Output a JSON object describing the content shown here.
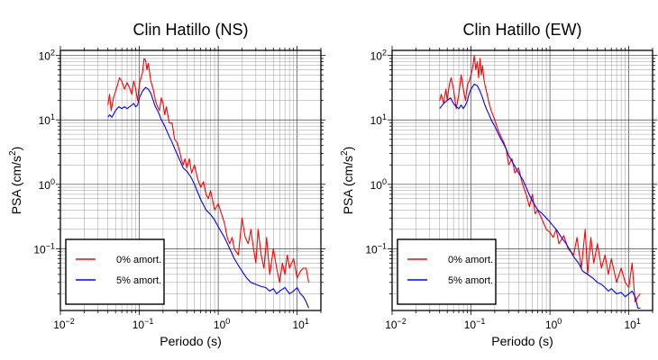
{
  "chart_data": [
    {
      "type": "line",
      "title": "Clin Hatillo (NS)",
      "xlabel": "Periodo (s)",
      "ylabel": "PSA (cm/s",
      "ylabel_sup": "2",
      "ylabel_close": ")",
      "x_scale": "log",
      "y_scale": "log",
      "xlim": [
        0.01,
        20
      ],
      "ylim": [
        0.011,
        120
      ],
      "grid": true,
      "legend_position": "bottom-left",
      "x_ticks": [
        {
          "base": "10",
          "exp": "−2",
          "value": 0.01
        },
        {
          "base": "10",
          "exp": "−1",
          "value": 0.1
        },
        {
          "base": "10",
          "exp": "0",
          "value": 1
        },
        {
          "base": "10",
          "exp": "1",
          "value": 10
        }
      ],
      "y_ticks": [
        {
          "base": "10",
          "exp": "−1",
          "value": 0.1
        },
        {
          "base": "10",
          "exp": "0",
          "value": 1
        },
        {
          "base": "10",
          "exp": "1",
          "value": 10
        },
        {
          "base": "10",
          "exp": "2",
          "value": 100
        }
      ],
      "series": [
        {
          "name": "0% amort.",
          "color": "#ff0000",
          "x": [
            0.04,
            0.042,
            0.044,
            0.047,
            0.05,
            0.053,
            0.056,
            0.06,
            0.065,
            0.07,
            0.075,
            0.08,
            0.085,
            0.09,
            0.095,
            0.1,
            0.105,
            0.11,
            0.115,
            0.12,
            0.125,
            0.13,
            0.135,
            0.14,
            0.15,
            0.16,
            0.17,
            0.18,
            0.19,
            0.2,
            0.21,
            0.22,
            0.24,
            0.26,
            0.28,
            0.3,
            0.32,
            0.34,
            0.36,
            0.38,
            0.4,
            0.43,
            0.46,
            0.5,
            0.55,
            0.6,
            0.65,
            0.7,
            0.75,
            0.8,
            0.9,
            1.0,
            1.1,
            1.2,
            1.3,
            1.4,
            1.5,
            1.6,
            1.8,
            2.0,
            2.2,
            2.4,
            2.6,
            2.8,
            3.0,
            3.2,
            3.5,
            3.8,
            4.1,
            4.5,
            5.0,
            5.5,
            6.0,
            6.5,
            7.0,
            7.5,
            8.0,
            9.0,
            10.0,
            11.0,
            12.0,
            13.0,
            14.0
          ],
          "y": [
            17,
            25,
            14,
            22,
            28,
            35,
            45,
            40,
            30,
            38,
            32,
            25,
            40,
            30,
            20,
            35,
            45,
            55,
            90,
            85,
            60,
            75,
            55,
            40,
            30,
            20,
            16,
            14,
            22,
            18,
            12,
            16,
            9,
            9,
            5,
            4.5,
            3.5,
            2.5,
            2.0,
            2.5,
            1.8,
            2.5,
            1.5,
            2.0,
            1.2,
            0.9,
            1.1,
            0.7,
            0.6,
            0.8,
            0.4,
            0.5,
            0.35,
            0.25,
            0.15,
            0.12,
            0.15,
            0.1,
            0.08,
            0.3,
            0.15,
            0.12,
            0.2,
            0.1,
            0.06,
            0.2,
            0.08,
            0.05,
            0.15,
            0.04,
            0.1,
            0.05,
            0.03,
            0.06,
            0.04,
            0.08,
            0.05,
            0.07,
            0.035,
            0.045,
            0.05,
            0.05,
            0.03
          ]
        },
        {
          "name": "5% amort.",
          "color": "#0000ff",
          "x": [
            0.04,
            0.042,
            0.045,
            0.05,
            0.055,
            0.06,
            0.065,
            0.07,
            0.075,
            0.08,
            0.085,
            0.09,
            0.095,
            0.1,
            0.11,
            0.12,
            0.13,
            0.14,
            0.15,
            0.16,
            0.17,
            0.18,
            0.19,
            0.2,
            0.21,
            0.22,
            0.24,
            0.26,
            0.28,
            0.3,
            0.32,
            0.34,
            0.36,
            0.4,
            0.45,
            0.5,
            0.55,
            0.6,
            0.65,
            0.7,
            0.8,
            0.9,
            1.0,
            1.2,
            1.4,
            1.6,
            1.8,
            2.0,
            2.3,
            2.6,
            3.0,
            3.5,
            4.0,
            4.5,
            5.0,
            5.5,
            6.0,
            7.0,
            8.0,
            9.0,
            10.0,
            11.0,
            12.0,
            13.0,
            14.0
          ],
          "y": [
            11,
            12,
            11,
            14,
            16,
            15,
            16,
            15,
            16,
            17,
            18,
            16,
            17,
            22,
            28,
            32,
            30,
            26,
            20,
            16,
            14,
            12,
            10,
            9,
            8,
            7,
            5.5,
            4.5,
            3.6,
            3,
            2.5,
            2.1,
            1.8,
            1.6,
            1.3,
            1.0,
            0.75,
            0.58,
            0.48,
            0.4,
            0.34,
            0.28,
            0.22,
            0.15,
            0.1,
            0.07,
            0.055,
            0.045,
            0.035,
            0.03,
            0.028,
            0.026,
            0.025,
            0.022,
            0.024,
            0.02,
            0.022,
            0.025,
            0.02,
            0.022,
            0.025,
            0.02,
            0.018,
            0.015,
            0.012
          ]
        }
      ]
    },
    {
      "type": "line",
      "title": "Clin Hatillo (EW)",
      "xlabel": "Periodo (s)",
      "ylabel": "PSA (cm/s",
      "ylabel_sup": "2",
      "ylabel_close": ")",
      "x_scale": "log",
      "y_scale": "log",
      "xlim": [
        0.01,
        20
      ],
      "ylim": [
        0.011,
        120
      ],
      "grid": true,
      "legend_position": "bottom-left",
      "x_ticks": [
        {
          "base": "10",
          "exp": "−2",
          "value": 0.01
        },
        {
          "base": "10",
          "exp": "−1",
          "value": 0.1
        },
        {
          "base": "10",
          "exp": "0",
          "value": 1
        },
        {
          "base": "10",
          "exp": "1",
          "value": 10
        }
      ],
      "y_ticks": [
        {
          "base": "10",
          "exp": "−1",
          "value": 0.1
        },
        {
          "base": "10",
          "exp": "0",
          "value": 1
        },
        {
          "base": "10",
          "exp": "1",
          "value": 10
        },
        {
          "base": "10",
          "exp": "2",
          "value": 100
        }
      ],
      "series": [
        {
          "name": "0% amort.",
          "color": "#ff0000",
          "x": [
            0.04,
            0.042,
            0.045,
            0.048,
            0.05,
            0.053,
            0.056,
            0.06,
            0.065,
            0.07,
            0.075,
            0.08,
            0.085,
            0.09,
            0.095,
            0.1,
            0.105,
            0.11,
            0.115,
            0.12,
            0.125,
            0.13,
            0.135,
            0.14,
            0.145,
            0.15,
            0.16,
            0.17,
            0.18,
            0.2,
            0.22,
            0.24,
            0.26,
            0.28,
            0.3,
            0.33,
            0.36,
            0.4,
            0.45,
            0.5,
            0.55,
            0.6,
            0.65,
            0.7,
            0.8,
            0.9,
            1.0,
            1.1,
            1.2,
            1.3,
            1.5,
            1.7,
            2.0,
            2.2,
            2.5,
            2.8,
            3.0,
            3.3,
            3.6,
            4.0,
            4.5,
            5.0,
            5.5,
            6.0,
            7.0,
            8.0,
            9.0,
            10.0,
            11.0,
            12.0,
            13.0,
            14.0
          ],
          "y": [
            20,
            25,
            18,
            30,
            20,
            35,
            45,
            30,
            15,
            25,
            50,
            30,
            20,
            35,
            40,
            50,
            65,
            100,
            60,
            80,
            45,
            90,
            50,
            70,
            45,
            35,
            25,
            18,
            14,
            10,
            7,
            5.5,
            4.5,
            3.5,
            2.0,
            2.5,
            1.5,
            1.8,
            1.0,
            0.7,
            0.45,
            0.7,
            0.35,
            0.4,
            0.28,
            0.2,
            0.18,
            0.15,
            0.2,
            0.12,
            0.16,
            0.1,
            0.08,
            0.15,
            0.05,
            0.2,
            0.04,
            0.15,
            0.06,
            0.12,
            0.05,
            0.08,
            0.04,
            0.07,
            0.03,
            0.05,
            0.03,
            0.025,
            0.06,
            0.015,
            0.018,
            0.02
          ]
        },
        {
          "name": "5% amort.",
          "color": "#0000ff",
          "x": [
            0.04,
            0.045,
            0.05,
            0.055,
            0.06,
            0.065,
            0.07,
            0.075,
            0.08,
            0.085,
            0.09,
            0.095,
            0.1,
            0.11,
            0.12,
            0.13,
            0.14,
            0.15,
            0.16,
            0.17,
            0.18,
            0.2,
            0.22,
            0.24,
            0.26,
            0.28,
            0.3,
            0.33,
            0.36,
            0.4,
            0.45,
            0.5,
            0.55,
            0.6,
            0.7,
            0.8,
            0.9,
            1.0,
            1.2,
            1.4,
            1.6,
            1.8,
            2.0,
            2.3,
            2.6,
            3.0,
            3.5,
            4.0,
            4.5,
            5.0,
            5.5,
            6.0,
            7.0,
            8.0,
            9.0,
            10.0,
            11.0,
            12.0,
            13.0,
            14.0
          ],
          "y": [
            15,
            18,
            20,
            22,
            18,
            16,
            15,
            17,
            15,
            17,
            20,
            26,
            30,
            36,
            34,
            28,
            22,
            17,
            14,
            12,
            10,
            8,
            6.2,
            5,
            4.2,
            3.5,
            2.8,
            2.3,
            1.9,
            1.5,
            1.2,
            0.9,
            0.68,
            0.55,
            0.4,
            0.35,
            0.3,
            0.26,
            0.2,
            0.15,
            0.12,
            0.095,
            0.075,
            0.06,
            0.045,
            0.04,
            0.035,
            0.03,
            0.028,
            0.025,
            0.022,
            0.024,
            0.02,
            0.021,
            0.018,
            0.02,
            0.022,
            0.018,
            0.012,
            0.012
          ]
        }
      ]
    }
  ]
}
